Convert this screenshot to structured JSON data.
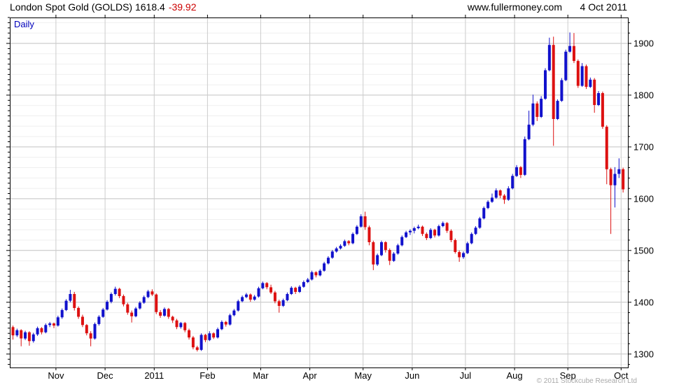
{
  "header": {
    "title": "London Spot Gold (GOLDS) 1618.4",
    "change": "-39.92",
    "change_color": "#cc0000",
    "site": "www.fullermoney.com",
    "date": "4 Oct 2011"
  },
  "chart": {
    "period_label": "Daily",
    "period_label_color": "#0000bb",
    "copyright": "© 2011 Stockcube Research Ltd"
  },
  "chart_data": {
    "type": "candlestick-ohlc",
    "title": "London Spot Gold (GOLDS)",
    "period": "Daily",
    "last_price": 1618.4,
    "change": -39.92,
    "x_labels": [
      "Nov",
      "Dec",
      "2011",
      "Feb",
      "Mar",
      "Apr",
      "May",
      "Jun",
      "Jul",
      "Aug",
      "Sep",
      "Oct"
    ],
    "month_start_indices": [
      11,
      23,
      35,
      48,
      61,
      73,
      86,
      98,
      111,
      123,
      136,
      149
    ],
    "y_ticks": [
      1300,
      1400,
      1500,
      1600,
      1700,
      1800,
      1900
    ],
    "y_minor_step": 20,
    "y_range": [
      1274,
      1950
    ],
    "grid": {
      "minor_color": "#efefef",
      "major_color": "#c2c2c2",
      "month_line_color": "#cccccc"
    },
    "up_color": "#1111cc",
    "down_color": "#dd1111",
    "candles": [
      [
        1352,
        1355,
        1328,
        1336
      ],
      [
        1336,
        1349,
        1333,
        1346
      ],
      [
        1346,
        1348,
        1315,
        1330
      ],
      [
        1330,
        1345,
        1327,
        1342
      ],
      [
        1342,
        1344,
        1316,
        1325
      ],
      [
        1325,
        1341,
        1322,
        1338
      ],
      [
        1338,
        1353,
        1335,
        1350
      ],
      [
        1350,
        1352,
        1338,
        1342
      ],
      [
        1342,
        1359,
        1340,
        1356
      ],
      [
        1356,
        1362,
        1352,
        1359
      ],
      [
        1359,
        1361,
        1350,
        1355
      ],
      [
        1355,
        1374,
        1353,
        1371
      ],
      [
        1371,
        1388,
        1368,
        1385
      ],
      [
        1385,
        1406,
        1383,
        1403
      ],
      [
        1403,
        1424,
        1400,
        1416
      ],
      [
        1416,
        1420,
        1384,
        1389
      ],
      [
        1389,
        1392,
        1368,
        1372
      ],
      [
        1372,
        1376,
        1352,
        1356
      ],
      [
        1356,
        1358,
        1336,
        1340
      ],
      [
        1340,
        1344,
        1315,
        1330
      ],
      [
        1330,
        1361,
        1328,
        1358
      ],
      [
        1358,
        1375,
        1355,
        1372
      ],
      [
        1372,
        1389,
        1370,
        1386
      ],
      [
        1386,
        1404,
        1384,
        1401
      ],
      [
        1401,
        1419,
        1398,
        1416
      ],
      [
        1416,
        1430,
        1413,
        1426
      ],
      [
        1426,
        1428,
        1408,
        1412
      ],
      [
        1412,
        1415,
        1392,
        1396
      ],
      [
        1396,
        1399,
        1376,
        1380
      ],
      [
        1380,
        1384,
        1361,
        1373
      ],
      [
        1373,
        1391,
        1371,
        1388
      ],
      [
        1388,
        1402,
        1386,
        1399
      ],
      [
        1399,
        1413,
        1397,
        1410
      ],
      [
        1410,
        1424,
        1408,
        1421
      ],
      [
        1421,
        1425,
        1412,
        1415
      ],
      [
        1415,
        1417,
        1377,
        1381
      ],
      [
        1381,
        1385,
        1370,
        1374
      ],
      [
        1374,
        1390,
        1372,
        1387
      ],
      [
        1387,
        1389,
        1368,
        1372
      ],
      [
        1372,
        1374,
        1360,
        1365
      ],
      [
        1365,
        1368,
        1348,
        1352
      ],
      [
        1352,
        1362,
        1349,
        1360
      ],
      [
        1360,
        1362,
        1342,
        1346
      ],
      [
        1346,
        1349,
        1328,
        1332
      ],
      [
        1332,
        1335,
        1309,
        1313
      ],
      [
        1313,
        1316,
        1305,
        1308
      ],
      [
        1308,
        1340,
        1306,
        1337
      ],
      [
        1337,
        1339,
        1323,
        1327
      ],
      [
        1327,
        1344,
        1325,
        1340
      ],
      [
        1340,
        1342,
        1329,
        1332
      ],
      [
        1332,
        1351,
        1330,
        1348
      ],
      [
        1348,
        1365,
        1346,
        1362
      ],
      [
        1362,
        1364,
        1353,
        1357
      ],
      [
        1357,
        1378,
        1355,
        1375
      ],
      [
        1375,
        1387,
        1373,
        1384
      ],
      [
        1384,
        1405,
        1382,
        1402
      ],
      [
        1402,
        1413,
        1400,
        1410
      ],
      [
        1410,
        1418,
        1408,
        1415
      ],
      [
        1415,
        1417,
        1401,
        1405
      ],
      [
        1405,
        1414,
        1403,
        1411
      ],
      [
        1411,
        1430,
        1409,
        1427
      ],
      [
        1427,
        1440,
        1425,
        1437
      ],
      [
        1437,
        1439,
        1425,
        1429
      ],
      [
        1429,
        1434,
        1416,
        1419
      ],
      [
        1419,
        1422,
        1398,
        1402
      ],
      [
        1402,
        1405,
        1380,
        1393
      ],
      [
        1393,
        1407,
        1391,
        1404
      ],
      [
        1404,
        1419,
        1402,
        1416
      ],
      [
        1416,
        1431,
        1414,
        1428
      ],
      [
        1428,
        1430,
        1416,
        1420
      ],
      [
        1420,
        1433,
        1418,
        1430
      ],
      [
        1430,
        1442,
        1428,
        1439
      ],
      [
        1439,
        1447,
        1437,
        1444
      ],
      [
        1444,
        1461,
        1442,
        1458
      ],
      [
        1458,
        1460,
        1448,
        1452
      ],
      [
        1452,
        1464,
        1450,
        1461
      ],
      [
        1461,
        1478,
        1459,
        1475
      ],
      [
        1475,
        1489,
        1473,
        1486
      ],
      [
        1486,
        1501,
        1484,
        1498
      ],
      [
        1498,
        1507,
        1496,
        1504
      ],
      [
        1504,
        1512,
        1502,
        1509
      ],
      [
        1509,
        1521,
        1507,
        1518
      ],
      [
        1518,
        1520,
        1510,
        1514
      ],
      [
        1514,
        1535,
        1512,
        1532
      ],
      [
        1532,
        1549,
        1530,
        1546
      ],
      [
        1546,
        1570,
        1544,
        1566
      ],
      [
        1566,
        1575,
        1540,
        1545
      ],
      [
        1545,
        1548,
        1510,
        1516
      ],
      [
        1516,
        1519,
        1462,
        1473
      ],
      [
        1473,
        1494,
        1470,
        1491
      ],
      [
        1491,
        1519,
        1489,
        1516
      ],
      [
        1516,
        1518,
        1496,
        1501
      ],
      [
        1501,
        1504,
        1472,
        1480
      ],
      [
        1480,
        1497,
        1478,
        1494
      ],
      [
        1494,
        1513,
        1492,
        1510
      ],
      [
        1510,
        1529,
        1508,
        1526
      ],
      [
        1526,
        1538,
        1524,
        1535
      ],
      [
        1535,
        1541,
        1530,
        1538
      ],
      [
        1538,
        1546,
        1533,
        1543
      ],
      [
        1543,
        1550,
        1541,
        1546
      ],
      [
        1546,
        1548,
        1528,
        1532
      ],
      [
        1532,
        1535,
        1520,
        1524
      ],
      [
        1524,
        1543,
        1522,
        1540
      ],
      [
        1540,
        1542,
        1525,
        1529
      ],
      [
        1529,
        1550,
        1527,
        1547
      ],
      [
        1547,
        1556,
        1545,
        1553
      ],
      [
        1553,
        1555,
        1534,
        1538
      ],
      [
        1538,
        1541,
        1516,
        1520
      ],
      [
        1520,
        1523,
        1494,
        1497
      ],
      [
        1497,
        1500,
        1478,
        1487
      ],
      [
        1487,
        1498,
        1484,
        1495
      ],
      [
        1495,
        1517,
        1493,
        1514
      ],
      [
        1514,
        1535,
        1512,
        1532
      ],
      [
        1532,
        1547,
        1530,
        1544
      ],
      [
        1544,
        1565,
        1542,
        1562
      ],
      [
        1562,
        1585,
        1560,
        1582
      ],
      [
        1582,
        1597,
        1580,
        1594
      ],
      [
        1594,
        1610,
        1592,
        1602
      ],
      [
        1602,
        1620,
        1600,
        1616
      ],
      [
        1616,
        1618,
        1601,
        1606
      ],
      [
        1606,
        1609,
        1590,
        1598
      ],
      [
        1598,
        1624,
        1596,
        1620
      ],
      [
        1620,
        1648,
        1618,
        1644
      ],
      [
        1644,
        1665,
        1642,
        1661
      ],
      [
        1661,
        1663,
        1640,
        1646
      ],
      [
        1646,
        1720,
        1644,
        1715
      ],
      [
        1715,
        1770,
        1713,
        1743
      ],
      [
        1743,
        1801,
        1740,
        1784
      ],
      [
        1784,
        1788,
        1750,
        1758
      ],
      [
        1758,
        1798,
        1756,
        1793
      ],
      [
        1793,
        1852,
        1791,
        1848
      ],
      [
        1848,
        1911,
        1846,
        1897
      ],
      [
        1897,
        1913,
        1702,
        1754
      ],
      [
        1754,
        1792,
        1752,
        1789
      ],
      [
        1789,
        1833,
        1787,
        1829
      ],
      [
        1829,
        1888,
        1827,
        1884
      ],
      [
        1884,
        1921,
        1882,
        1895
      ],
      [
        1895,
        1920,
        1862,
        1866
      ],
      [
        1866,
        1869,
        1814,
        1818
      ],
      [
        1818,
        1862,
        1816,
        1856
      ],
      [
        1856,
        1859,
        1812,
        1816
      ],
      [
        1816,
        1834,
        1814,
        1830
      ],
      [
        1830,
        1833,
        1766,
        1781
      ],
      [
        1781,
        1808,
        1779,
        1804
      ],
      [
        1804,
        1807,
        1735,
        1739
      ],
      [
        1739,
        1742,
        1628,
        1657
      ],
      [
        1657,
        1660,
        1532,
        1626
      ],
      [
        1626,
        1661,
        1583,
        1648
      ],
      [
        1648,
        1678,
        1640,
        1657
      ],
      [
        1657,
        1660,
        1612,
        1618
      ]
    ]
  }
}
